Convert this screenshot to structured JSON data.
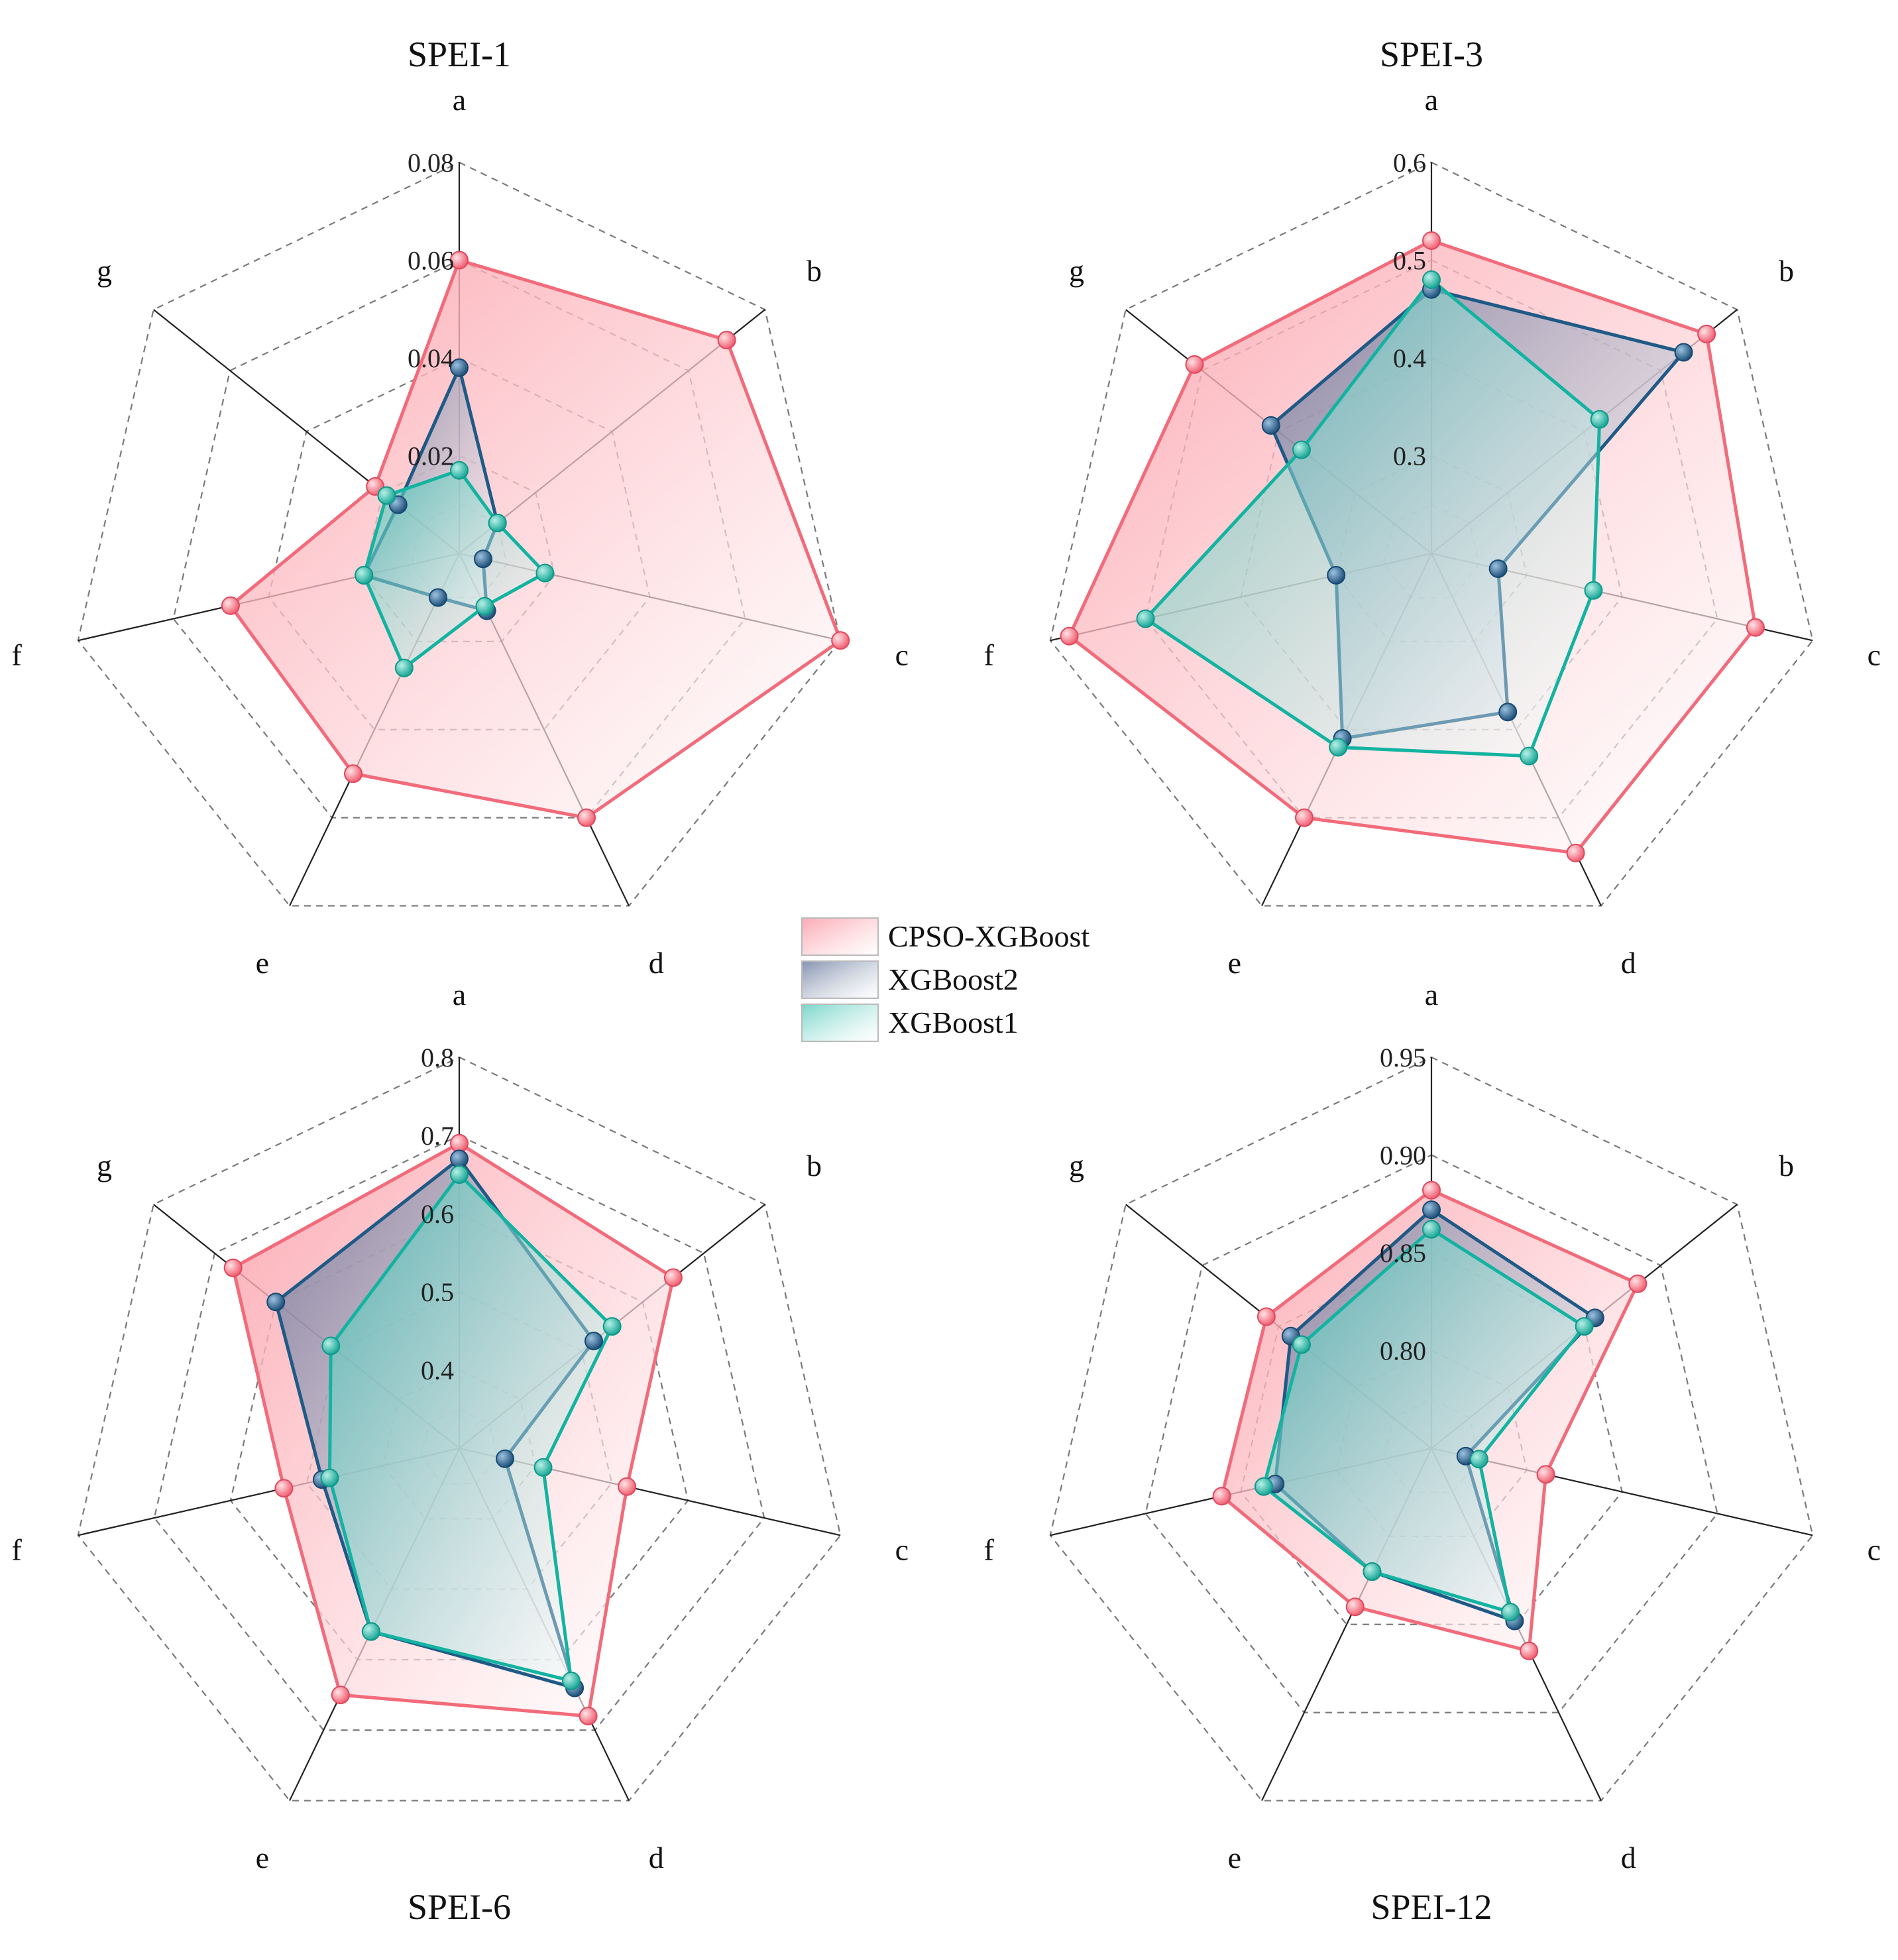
{
  "chart_data": [
    {
      "type": "radar",
      "title": "SPEI-1",
      "axes": [
        "a",
        "b",
        "c",
        "d",
        "e",
        "f",
        "g"
      ],
      "rlim": [
        0,
        0.08
      ],
      "ticks": [
        "0.02",
        "0.04",
        "0.06",
        "0.08"
      ],
      "tick_values": [
        0.02,
        0.04,
        0.06,
        0.08
      ],
      "series": [
        {
          "name": "CPSO-XGBoost",
          "values": [
            0.06,
            0.07,
            0.08,
            0.06,
            0.05,
            0.048,
            0.022
          ]
        },
        {
          "name": "XGBoost2",
          "values": [
            0.038,
            0.01,
            0.005,
            0.013,
            0.01,
            0.02,
            0.016
          ]
        },
        {
          "name": "XGBoost1",
          "values": [
            0.017,
            0.01,
            0.018,
            0.012,
            0.026,
            0.02,
            0.019
          ]
        }
      ]
    },
    {
      "type": "radar",
      "title": "SPEI-3",
      "axes": [
        "a",
        "b",
        "c",
        "d",
        "e",
        "f",
        "g"
      ],
      "rlim": [
        0.2,
        0.6
      ],
      "ticks": [
        "0.3",
        "0.4",
        "0.5",
        "0.6"
      ],
      "tick_values": [
        0.3,
        0.4,
        0.5,
        0.6
      ],
      "series": [
        {
          "name": "CPSO-XGBoost",
          "values": [
            0.52,
            0.56,
            0.54,
            0.54,
            0.5,
            0.58,
            0.51
          ]
        },
        {
          "name": "XGBoost2",
          "values": [
            0.47,
            0.53,
            0.27,
            0.38,
            0.41,
            0.3,
            0.41
          ]
        },
        {
          "name": "XGBoost1",
          "values": [
            0.48,
            0.42,
            0.37,
            0.43,
            0.42,
            0.5,
            0.37
          ]
        }
      ]
    },
    {
      "type": "radar",
      "title": "SPEI-6",
      "axes": [
        "a",
        "b",
        "c",
        "d",
        "e",
        "f",
        "g"
      ],
      "rlim": [
        0.3,
        0.8
      ],
      "ticks": [
        "0.4",
        "0.5",
        "0.6",
        "0.7",
        "0.8"
      ],
      "tick_values": [
        0.4,
        0.5,
        0.6,
        0.7,
        0.8
      ],
      "series": [
        {
          "name": "CPSO-XGBoost",
          "values": [
            0.69,
            0.65,
            0.52,
            0.68,
            0.65,
            0.53,
            0.67
          ]
        },
        {
          "name": "XGBoost2",
          "values": [
            0.67,
            0.52,
            0.36,
            0.64,
            0.56,
            0.48,
            0.6
          ]
        },
        {
          "name": "XGBoost1",
          "values": [
            0.65,
            0.55,
            0.41,
            0.63,
            0.56,
            0.47,
            0.51
          ]
        }
      ]
    },
    {
      "type": "radar",
      "title": "SPEI-12",
      "axes": [
        "a",
        "b",
        "c",
        "d",
        "e",
        "f",
        "g"
      ],
      "rlim": [
        0.75,
        0.95
      ],
      "ticks": [
        "0.80",
        "0.85",
        "0.90",
        "0.95"
      ],
      "tick_values": [
        0.8,
        0.85,
        0.9,
        0.95
      ],
      "series": [
        {
          "name": "CPSO-XGBoost",
          "values": [
            0.882,
            0.885,
            0.81,
            0.865,
            0.84,
            0.86,
            0.858
          ]
        },
        {
          "name": "XGBoost2",
          "values": [
            0.872,
            0.857,
            0.768,
            0.848,
            0.82,
            0.832,
            0.842
          ]
        },
        {
          "name": "XGBoost1",
          "values": [
            0.862,
            0.85,
            0.775,
            0.843,
            0.82,
            0.838,
            0.835
          ]
        }
      ]
    }
  ],
  "legend": {
    "items": [
      {
        "label": "CPSO-XGBoost",
        "color": "#f26b7a"
      },
      {
        "label": "XGBoost2",
        "color": "#1f5a86"
      },
      {
        "label": "XGBoost1",
        "color": "#13b3a1"
      }
    ]
  }
}
